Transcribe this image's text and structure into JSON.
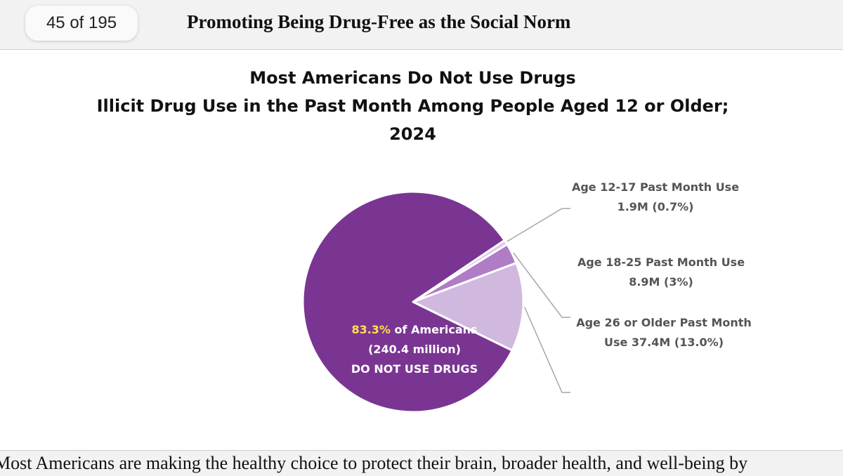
{
  "header": {
    "page_indicator": "45 of 195",
    "doc_title": "Promoting Being Drug-Free as the Social Norm"
  },
  "chart_data": {
    "type": "pie",
    "title_lines": [
      "Most Americans Do Not Use Drugs",
      "Illicit Drug Use in the Past Month Among People Aged 12 or Older;",
      "2024"
    ],
    "slices": [
      {
        "label_line1": "Age 12-17 Past Month Use",
        "label_line2": "1.9M (0.7%)",
        "value": 0.7,
        "color": "#dcc5ea"
      },
      {
        "label_line1": "Age 18-25 Past Month Use",
        "label_line2": "8.9M (3%)",
        "value": 3.0,
        "color": "#b07cc6"
      },
      {
        "label_line1": "Age 26 or Older Past Month",
        "label_line2": "Use 37.4M (13.0%)",
        "value": 13.0,
        "color": "#d1b8de"
      },
      {
        "value": 83.3,
        "color": "#7a3592"
      }
    ],
    "center_label": {
      "percent": "83.3%",
      "line1_rest": " of Americans",
      "line2": "(240.4 million)",
      "line3": "DO NOT USE DRUGS",
      "highlight_color": "#ffe14d"
    }
  },
  "footer": {
    "text": "Most Americans are making the healthy choice to protect their brain, broader health, and well-being by"
  }
}
